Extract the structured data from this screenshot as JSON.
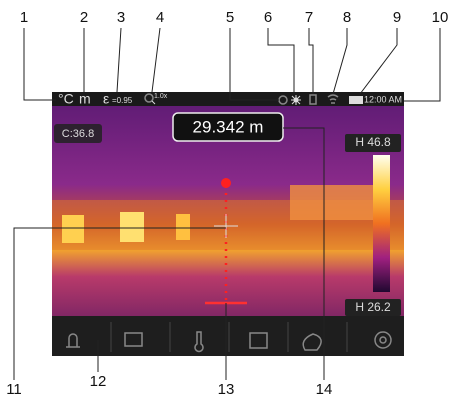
{
  "callouts": {
    "top": [
      "1",
      "2",
      "3",
      "4",
      "5",
      "6",
      "7",
      "8",
      "9",
      "10"
    ],
    "bottom": [
      "11",
      "12",
      "13",
      "14"
    ]
  },
  "status_bar": {
    "unit_temp": "°C",
    "unit_dist": "m",
    "emissivity_symbol": "ε",
    "emissivity_value": "=0.95",
    "zoom": "1.0x",
    "time": "12:00 AM"
  },
  "screen": {
    "center_temp": "C:36.8",
    "distance": "29.342 m",
    "high_temp": "H 46.8",
    "low_temp": "H 26.2"
  }
}
